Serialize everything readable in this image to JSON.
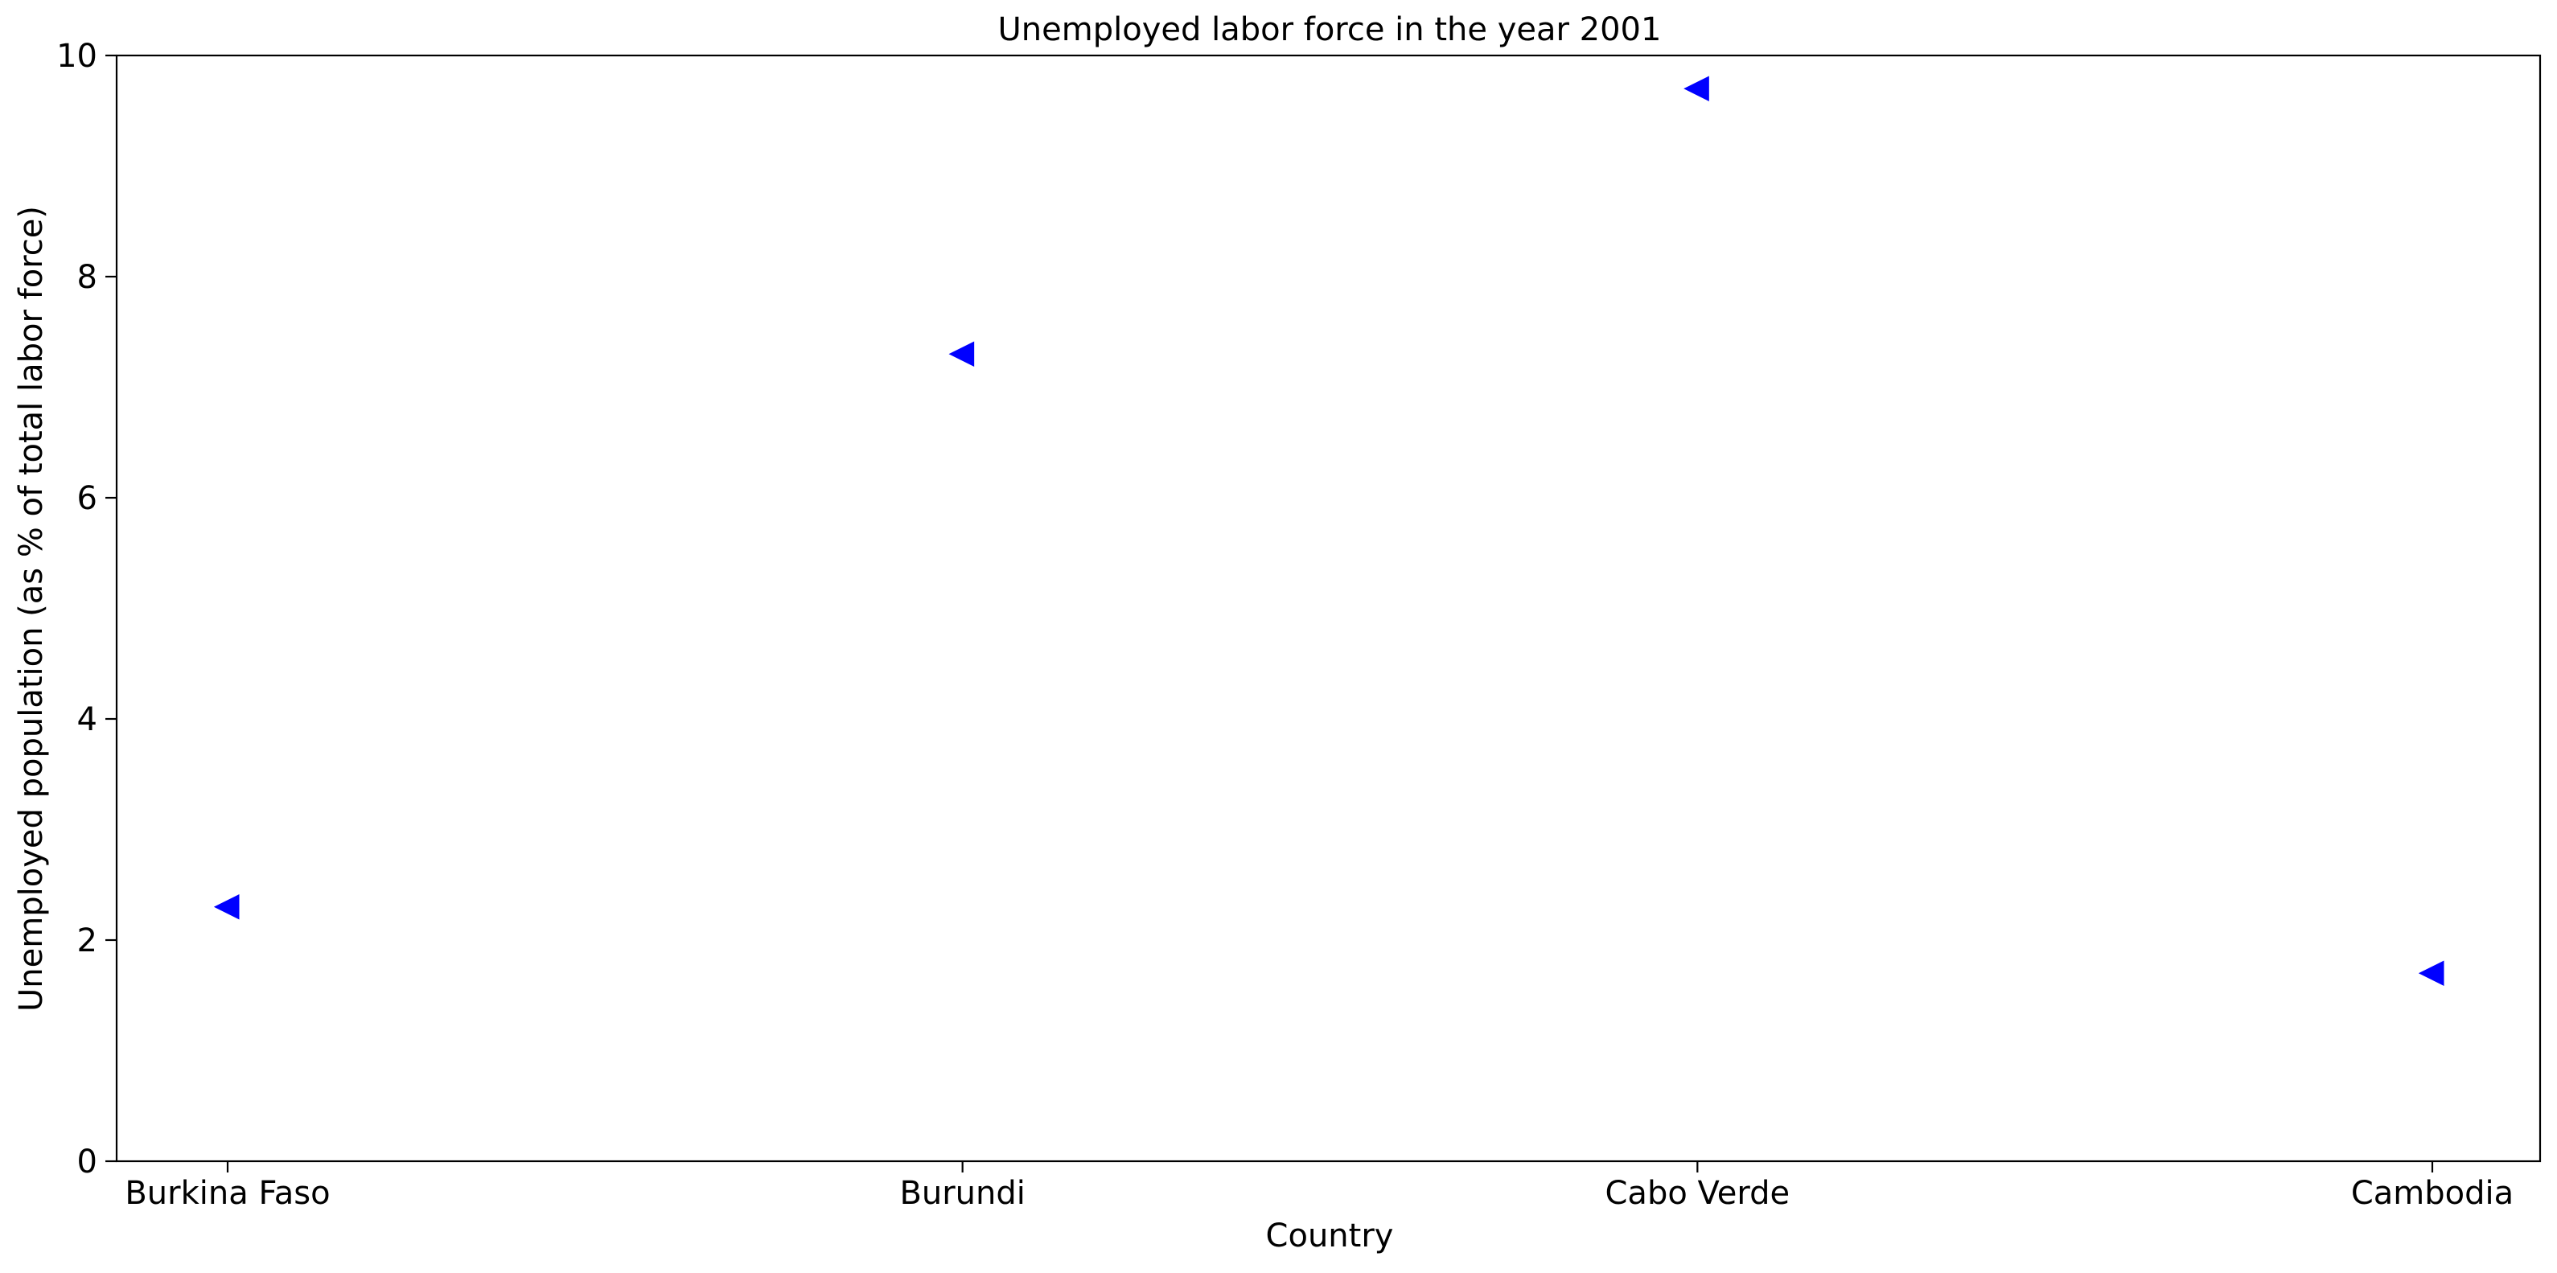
{
  "chart_data": {
    "type": "scatter",
    "title": "Unemployed labor force in the year 2001",
    "xlabel": "Country",
    "ylabel": "Unemployed population (as % of total labor force)",
    "categories": [
      "Burkina Faso",
      "Burundi",
      "Cabo Verde",
      "Cambodia"
    ],
    "series": [
      {
        "values": [
          2.3,
          7.3,
          9.7,
          1.7
        ],
        "color": "#0000ff",
        "marker": "triangle-left"
      }
    ],
    "ylim": [
      0,
      10
    ],
    "yticks": [
      0,
      2,
      4,
      6,
      8,
      10
    ],
    "grid": false,
    "legend": "none"
  }
}
